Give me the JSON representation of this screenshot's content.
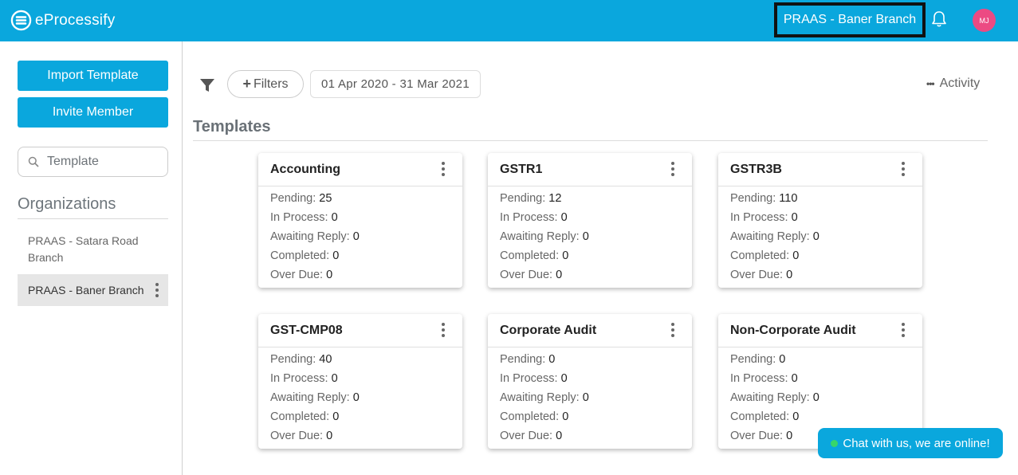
{
  "header": {
    "app_name": "eProcessify",
    "branch_label": "PRAAS - Baner Branch",
    "avatar_initials": "MJ",
    "brand_color": "#0aa7dd"
  },
  "sidebar": {
    "import_label": "Import Template",
    "invite_label": "Invite Member",
    "search_value": "Template",
    "org_title": "Organizations",
    "orgs": [
      {
        "label": "PRAAS - Satara Road Branch"
      },
      {
        "label": "PRAAS - Baner Branch"
      }
    ]
  },
  "toolbar": {
    "filters_label": "Filters",
    "date_range": "01 Apr 2020 - 31 Mar 2021",
    "activity_label": "Activity"
  },
  "section_title": "Templates",
  "stat_labels": {
    "pending": "Pending:",
    "in_process": "In Process:",
    "awaiting": "Awaiting Reply:",
    "completed": "Completed:",
    "overdue": "Over Due:"
  },
  "cards": [
    {
      "title": "Accounting",
      "pending": "25",
      "in_process": "0",
      "awaiting": "0",
      "completed": "0",
      "overdue": "0"
    },
    {
      "title": "GSTR1",
      "pending": "12",
      "in_process": "0",
      "awaiting": "0",
      "completed": "0",
      "overdue": "0"
    },
    {
      "title": "GSTR3B",
      "pending": "110",
      "in_process": "0",
      "awaiting": "0",
      "completed": "0",
      "overdue": "0"
    },
    {
      "title": "GST-CMP08",
      "pending": "40",
      "in_process": "0",
      "awaiting": "0",
      "completed": "0",
      "overdue": "0"
    },
    {
      "title": "Corporate Audit",
      "pending": "0",
      "in_process": "0",
      "awaiting": "0",
      "completed": "0",
      "overdue": "0"
    },
    {
      "title": "Non-Corporate Audit",
      "pending": "0",
      "in_process": "0",
      "awaiting": "0",
      "completed": "0",
      "overdue": "0"
    }
  ],
  "chat_label": "Chat with us, we are online!"
}
